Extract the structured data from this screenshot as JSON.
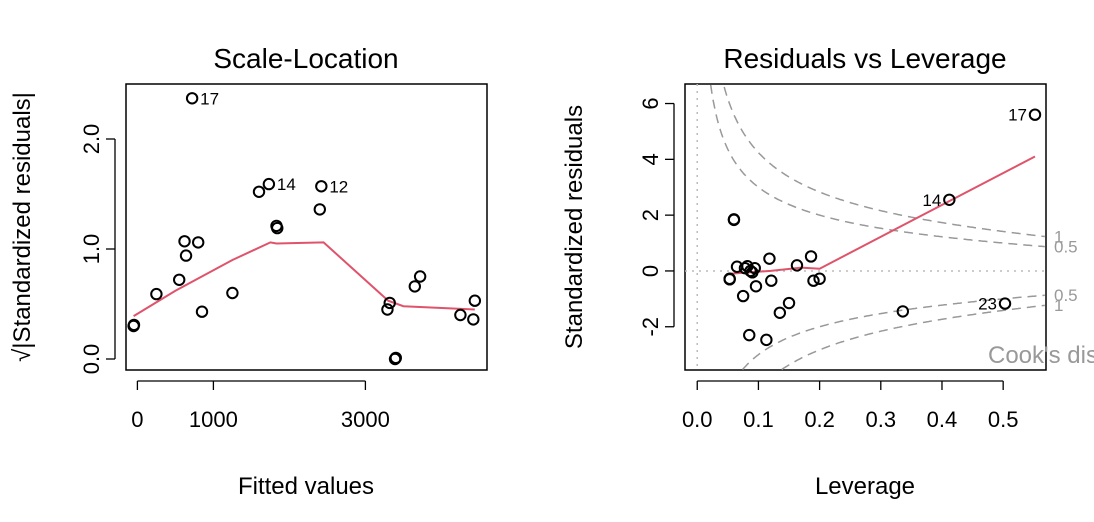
{
  "chart_data": [
    {
      "type": "scatter",
      "title": "Scale-Location",
      "xlabel": "Fitted values",
      "ylabel": "√|Standardized residuals|",
      "xlim": [
        -150,
        4600
      ],
      "ylim": [
        -0.1,
        2.5
      ],
      "xticks": [
        0,
        1000,
        3000
      ],
      "xtick_labels": [
        "0",
        "1000",
        "3000"
      ],
      "yticks": [
        0.0,
        1.0,
        2.0
      ],
      "ytick_labels": [
        "0.0",
        "1.0",
        "2.0"
      ],
      "points": [
        {
          "x": -50,
          "y": 0.3
        },
        {
          "x": -45,
          "y": 0.31
        },
        {
          "x": 250,
          "y": 0.59
        },
        {
          "x": 550,
          "y": 0.72
        },
        {
          "x": 640,
          "y": 0.94
        },
        {
          "x": 620,
          "y": 1.07
        },
        {
          "x": 800,
          "y": 1.06
        },
        {
          "x": 850,
          "y": 0.43
        },
        {
          "x": 1250,
          "y": 0.6
        },
        {
          "x": 1600,
          "y": 1.52
        },
        {
          "x": 1730,
          "y": 1.59,
          "label": "14"
        },
        {
          "x": 1830,
          "y": 1.21
        },
        {
          "x": 1840,
          "y": 1.19
        },
        {
          "x": 2400,
          "y": 1.36
        },
        {
          "x": 2420,
          "y": 1.57,
          "label": "12"
        },
        {
          "x": 3290,
          "y": 0.45
        },
        {
          "x": 3320,
          "y": 0.51
        },
        {
          "x": 3390,
          "y": 0.0
        },
        {
          "x": 3400,
          "y": 0.01
        },
        {
          "x": 3650,
          "y": 0.66
        },
        {
          "x": 3720,
          "y": 0.75
        },
        {
          "x": 4250,
          "y": 0.4
        },
        {
          "x": 4420,
          "y": 0.36
        },
        {
          "x": 4440,
          "y": 0.53
        },
        {
          "x": 720,
          "y": 2.37,
          "label": "17"
        }
      ],
      "smooth": [
        {
          "x": -50,
          "y": 0.39
        },
        {
          "x": 500,
          "y": 0.62
        },
        {
          "x": 1250,
          "y": 0.9
        },
        {
          "x": 1750,
          "y": 1.06
        },
        {
          "x": 1830,
          "y": 1.05
        },
        {
          "x": 2450,
          "y": 1.06
        },
        {
          "x": 3300,
          "y": 0.53
        },
        {
          "x": 3500,
          "y": 0.48
        },
        {
          "x": 4440,
          "y": 0.45
        }
      ],
      "smooth_color": "#DF536B"
    },
    {
      "type": "scatter",
      "title": "Residuals vs Leverage",
      "xlabel": "Leverage",
      "ylabel": "Standardized residuals",
      "xlim": [
        -0.02,
        0.57
      ],
      "ylim": [
        -3.55,
        6.7
      ],
      "xticks": [
        0.0,
        0.1,
        0.2,
        0.3,
        0.4,
        0.5
      ],
      "xtick_labels": [
        "0.0",
        "0.1",
        "0.2",
        "0.3",
        "0.4",
        "0.5"
      ],
      "yticks": [
        -2,
        0,
        2,
        4,
        6
      ],
      "ytick_labels": [
        "-2",
        "0",
        "2",
        "4",
        "6"
      ],
      "points": [
        {
          "x": 0.053,
          "y": -0.3
        },
        {
          "x": 0.053,
          "y": -0.28
        },
        {
          "x": 0.06,
          "y": 1.85
        },
        {
          "x": 0.06,
          "y": 1.83
        },
        {
          "x": 0.065,
          "y": 0.15
        },
        {
          "x": 0.075,
          "y": -0.9
        },
        {
          "x": 0.078,
          "y": 0.1
        },
        {
          "x": 0.082,
          "y": 0.17
        },
        {
          "x": 0.085,
          "y": -2.3
        },
        {
          "x": 0.087,
          "y": 0.0
        },
        {
          "x": 0.09,
          "y": -0.05
        },
        {
          "x": 0.094,
          "y": 0.1
        },
        {
          "x": 0.096,
          "y": -0.55
        },
        {
          "x": 0.113,
          "y": -2.47
        },
        {
          "x": 0.118,
          "y": 0.44
        },
        {
          "x": 0.121,
          "y": -0.35
        },
        {
          "x": 0.135,
          "y": -1.5
        },
        {
          "x": 0.15,
          "y": -1.15
        },
        {
          "x": 0.163,
          "y": 0.2
        },
        {
          "x": 0.186,
          "y": 0.52
        },
        {
          "x": 0.19,
          "y": -0.35
        },
        {
          "x": 0.2,
          "y": -0.28
        },
        {
          "x": 0.336,
          "y": -1.45
        },
        {
          "x": 0.412,
          "y": 2.55,
          "label": "14"
        },
        {
          "x": 0.503,
          "y": -1.17,
          "label": "23"
        },
        {
          "x": 0.552,
          "y": 5.6,
          "label": "17"
        }
      ],
      "smooth": [
        {
          "x": 0.053,
          "y": -0.1
        },
        {
          "x": 0.12,
          "y": 0.0
        },
        {
          "x": 0.17,
          "y": 0.12
        },
        {
          "x": 0.2,
          "y": 0.08
        },
        {
          "x": 0.552,
          "y": 4.1
        }
      ],
      "smooth_color": "#DF536B",
      "cook_label": "Cook's distance",
      "cook_contour_labels": [
        "1",
        "0.5",
        "0.5",
        "1"
      ],
      "contour_color": "#999999"
    }
  ]
}
